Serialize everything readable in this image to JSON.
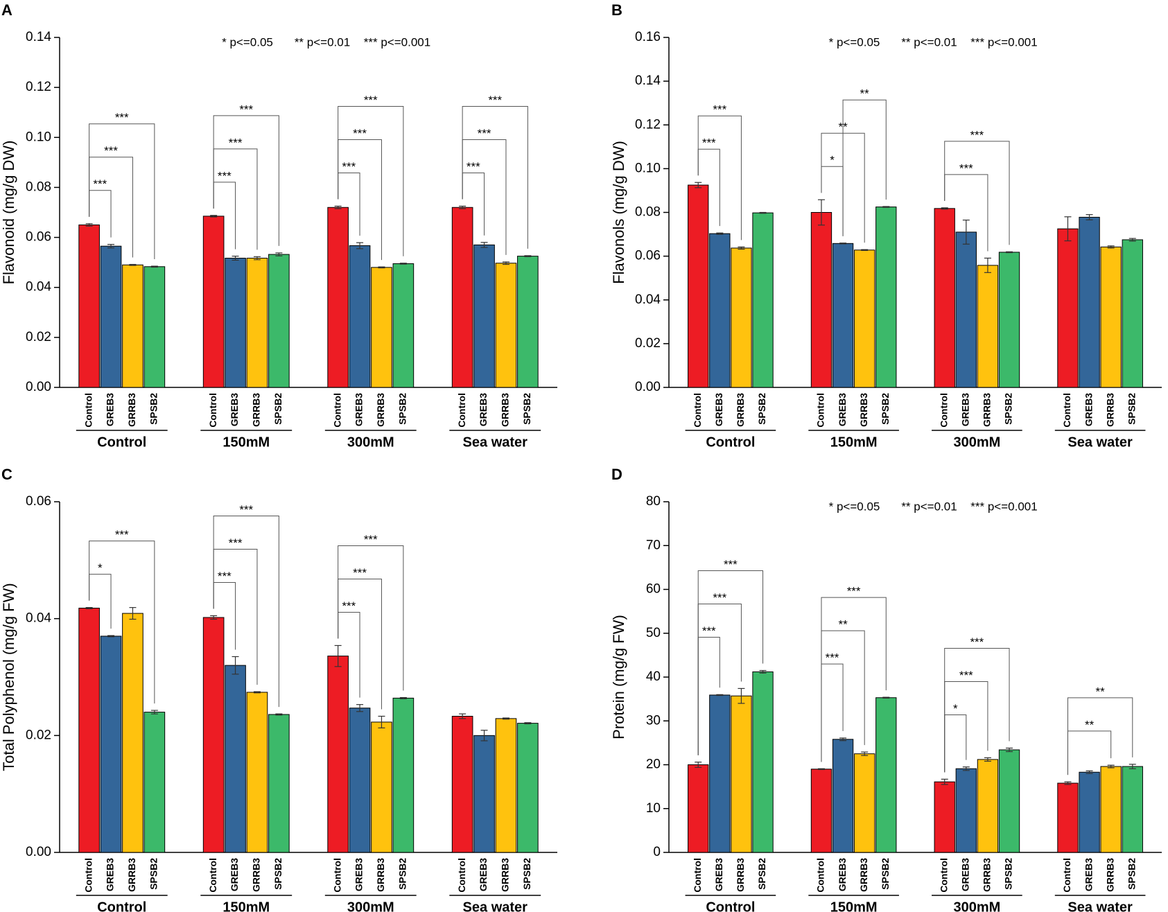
{
  "chart_data": [
    {
      "type": "bar",
      "title": "A",
      "ylabel": "Flavonoid (mg/g DW)",
      "notes": [
        "* p<=0.05",
        "** p<=0.01",
        "*** p<=0.001"
      ],
      "categories": [
        "Control",
        "150mM",
        "300mM",
        "Sea water"
      ],
      "series": [
        {
          "name": "Control",
          "color": "#ed1c24",
          "values": [
            0.065,
            0.0685,
            0.072,
            0.072
          ],
          "errors": [
            0.0005,
            0.0003,
            0.0005,
            0.0005
          ]
        },
        {
          "name": "GREB3",
          "color": "#336699",
          "values": [
            0.0565,
            0.0517,
            0.0567,
            0.057
          ],
          "errors": [
            0.0007,
            0.0008,
            0.0012,
            0.001
          ]
        },
        {
          "name": "GRRB3",
          "color": "#ffc20e",
          "values": [
            0.049,
            0.0517,
            0.048,
            0.0497
          ],
          "errors": [
            0.0002,
            0.0006,
            0.0002,
            0.0005
          ]
        },
        {
          "name": "SPSB2",
          "color": "#3cb96a",
          "values": [
            0.0483,
            0.0532,
            0.0495,
            0.0525
          ],
          "errors": [
            0.0002,
            0.0006,
            0.0002,
            0.0002
          ]
        }
      ],
      "brackets": [
        {
          "group": 0,
          "from": 0,
          "to": 1,
          "label": "***"
        },
        {
          "group": 0,
          "from": 0,
          "to": 2,
          "label": "***"
        },
        {
          "group": 0,
          "from": 0,
          "to": 3,
          "label": "***"
        },
        {
          "group": 1,
          "from": 0,
          "to": 1,
          "label": "***"
        },
        {
          "group": 1,
          "from": 0,
          "to": 2,
          "label": "***"
        },
        {
          "group": 1,
          "from": 0,
          "to": 3,
          "label": "***"
        },
        {
          "group": 2,
          "from": 0,
          "to": 1,
          "label": "***"
        },
        {
          "group": 2,
          "from": 0,
          "to": 2,
          "label": "***"
        },
        {
          "group": 2,
          "from": 0,
          "to": 3,
          "label": "***"
        },
        {
          "group": 3,
          "from": 0,
          "to": 1,
          "label": "***"
        },
        {
          "group": 3,
          "from": 0,
          "to": 2,
          "label": "***"
        },
        {
          "group": 3,
          "from": 0,
          "to": 3,
          "label": "***"
        }
      ],
      "ylim": [
        0,
        0.14
      ],
      "yticks": [
        {
          "value": 0,
          "label": "0.00"
        },
        0.02,
        0.04,
        0.06,
        0.08,
        {
          "value": 0.1,
          "label": "0.10"
        },
        0.12,
        0.14
      ]
    },
    {
      "type": "bar",
      "title": "B",
      "ylabel": "Flavonols (mg/g DW)",
      "notes": [
        "* p<=0.05",
        "** p<=0.01",
        "*** p<=0.001"
      ],
      "categories": [
        "Control",
        "150mM",
        "300mM",
        "Sea water"
      ],
      "series": [
        {
          "name": "Control",
          "color": "#ed1c24",
          "values": [
            0.0925,
            0.08,
            0.0818,
            0.0725
          ],
          "errors": [
            0.0012,
            0.0058,
            0.0003,
            0.0055
          ]
        },
        {
          "name": "GREB3",
          "color": "#336699",
          "values": [
            0.0703,
            0.0658,
            0.071,
            0.0778
          ],
          "errors": [
            0.0003,
            0.0002,
            0.0055,
            0.0012
          ]
        },
        {
          "name": "GRRB3",
          "color": "#ffc20e",
          "values": [
            0.0637,
            0.0628,
            0.0558,
            0.0642
          ],
          "errors": [
            0.0005,
            0.0002,
            0.0033,
            0.0005
          ]
        },
        {
          "name": "SPSB2",
          "color": "#3cb96a",
          "values": [
            0.0798,
            0.0825,
            0.0618,
            0.0675
          ],
          "errors": [
            0.0002,
            0.0002,
            0.0002,
            0.0006
          ]
        }
      ],
      "brackets": [
        {
          "group": 0,
          "from": 0,
          "to": 1,
          "label": "***"
        },
        {
          "group": 0,
          "from": 0,
          "to": 2,
          "label": "***"
        },
        {
          "group": 1,
          "from": 0,
          "to": 1,
          "label": "*"
        },
        {
          "group": 1,
          "from": 0,
          "to": 2,
          "label": "**"
        },
        {
          "group": 1,
          "from": 1,
          "to": 3,
          "label": "**"
        },
        {
          "group": 2,
          "from": 0,
          "to": 2,
          "label": "***"
        },
        {
          "group": 2,
          "from": 0,
          "to": 3,
          "label": "***"
        }
      ],
      "ylim": [
        0,
        0.16
      ],
      "yticks": [
        {
          "value": 0,
          "label": "0.00"
        },
        0.02,
        0.04,
        0.06,
        0.08,
        {
          "value": 0.1,
          "label": "0.10"
        },
        0.12,
        0.14,
        0.16
      ]
    },
    {
      "type": "bar",
      "title": "C",
      "ylabel": "Total Polyphenol (mg/g FW)",
      "categories": [
        "Control",
        "150mM",
        "300mM",
        "Sea water"
      ],
      "series": [
        {
          "name": "Control",
          "color": "#ed1c24",
          "values": [
            0.0418,
            0.0402,
            0.0336,
            0.0233
          ],
          "errors": [
            0.0001,
            0.0003,
            0.0018,
            0.0004
          ]
        },
        {
          "name": "GREB3",
          "color": "#336699",
          "values": [
            0.037,
            0.032,
            0.0247,
            0.02
          ],
          "errors": [
            0.0001,
            0.0015,
            0.0006,
            0.0009
          ]
        },
        {
          "name": "GRRB3",
          "color": "#ffc20e",
          "values": [
            0.0409,
            0.0274,
            0.0223,
            0.0229
          ],
          "errors": [
            0.001,
            0.0001,
            0.001,
            0.0001
          ]
        },
        {
          "name": "SPSB2",
          "color": "#3cb96a",
          "values": [
            0.024,
            0.0236,
            0.0264,
            0.0221
          ],
          "errors": [
            0.0003,
            0.0001,
            0.0001,
            0.0001
          ]
        }
      ],
      "brackets": [
        {
          "group": 0,
          "from": 0,
          "to": 1,
          "label": "*"
        },
        {
          "group": 0,
          "from": 0,
          "to": 3,
          "label": "***"
        },
        {
          "group": 1,
          "from": 0,
          "to": 1,
          "label": "***"
        },
        {
          "group": 1,
          "from": 0,
          "to": 2,
          "label": "***"
        },
        {
          "group": 1,
          "from": 0,
          "to": 3,
          "label": "***"
        },
        {
          "group": 2,
          "from": 0,
          "to": 1,
          "label": "***"
        },
        {
          "group": 2,
          "from": 0,
          "to": 2,
          "label": "***"
        },
        {
          "group": 2,
          "from": 0,
          "to": 3,
          "label": "***"
        }
      ],
      "ylim": [
        0,
        0.06
      ],
      "yticks": [
        {
          "value": 0,
          "label": "0.00"
        },
        0.02,
        0.04,
        0.06
      ]
    },
    {
      "type": "bar",
      "title": "D",
      "ylabel": "Protein (mg/g FW)",
      "notes": [
        "* p<=0.05",
        "** p<=0.01",
        "*** p<=0.001"
      ],
      "categories": [
        "Control",
        "150mM",
        "300mM",
        "Sea water"
      ],
      "series": [
        {
          "name": "Control",
          "color": "#ed1c24",
          "values": [
            20,
            19,
            16.1,
            15.8
          ],
          "errors": [
            0.6,
            0.1,
            0.6,
            0.3
          ]
        },
        {
          "name": "GREB3",
          "color": "#336699",
          "values": [
            35.9,
            25.8,
            19.1,
            18.3
          ],
          "errors": [
            0.1,
            0.3,
            0.4,
            0.3
          ]
        },
        {
          "name": "GRRB3",
          "color": "#ffc20e",
          "values": [
            35.7,
            22.5,
            21.2,
            19.6
          ],
          "errors": [
            1.7,
            0.4,
            0.4,
            0.3
          ]
        },
        {
          "name": "SPSB2",
          "color": "#3cb96a",
          "values": [
            41.2,
            35.3,
            23.4,
            19.6
          ],
          "errors": [
            0.3,
            0.1,
            0.4,
            0.5
          ]
        }
      ],
      "brackets": [
        {
          "group": 0,
          "from": 0,
          "to": 1,
          "label": "***"
        },
        {
          "group": 0,
          "from": 0,
          "to": 2,
          "label": "***"
        },
        {
          "group": 0,
          "from": 0,
          "to": 3,
          "label": "***"
        },
        {
          "group": 1,
          "from": 0,
          "to": 1,
          "label": "***"
        },
        {
          "group": 1,
          "from": 0,
          "to": 2,
          "label": "**"
        },
        {
          "group": 1,
          "from": 0,
          "to": 3,
          "label": "***"
        },
        {
          "group": 2,
          "from": 0,
          "to": 1,
          "label": "*"
        },
        {
          "group": 2,
          "from": 0,
          "to": 2,
          "label": "***"
        },
        {
          "group": 2,
          "from": 0,
          "to": 3,
          "label": "***"
        },
        {
          "group": 3,
          "from": 0,
          "to": 2,
          "label": "**"
        },
        {
          "group": 3,
          "from": 0,
          "to": 3,
          "label": "**"
        }
      ],
      "ylim": [
        0,
        80
      ],
      "yticks": [
        0,
        10,
        20,
        30,
        40,
        50,
        60,
        70,
        80
      ]
    }
  ]
}
